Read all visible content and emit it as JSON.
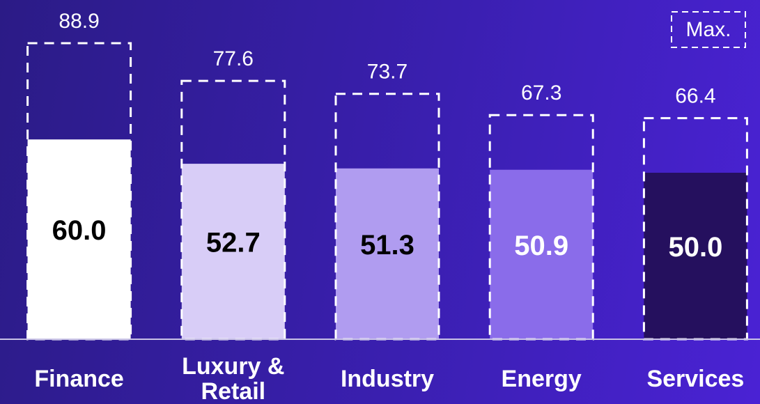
{
  "chart_data": {
    "type": "bar",
    "categories": [
      "Finance",
      "Luxury & Retail",
      "Industry",
      "Energy",
      "Services"
    ],
    "series": [
      {
        "values": [
          60,
          52.7,
          51.3,
          50.9,
          50
        ],
        "value_labels": [
          "60.0",
          "52.7",
          "51.3",
          "50.9",
          "50.0"
        ],
        "colors": [
          "#ffffff",
          "#d8cdf7",
          "#b09cf0",
          "#8a6cea",
          "#25105e"
        ]
      },
      {
        "name": "Max.",
        "values": [
          88.9,
          77.6,
          73.7,
          67.3,
          66.4
        ],
        "color": "#ffffff",
        "style": "dashed"
      }
    ],
    "ylim": [
      0,
      100
    ],
    "legend": "upper right"
  }
}
